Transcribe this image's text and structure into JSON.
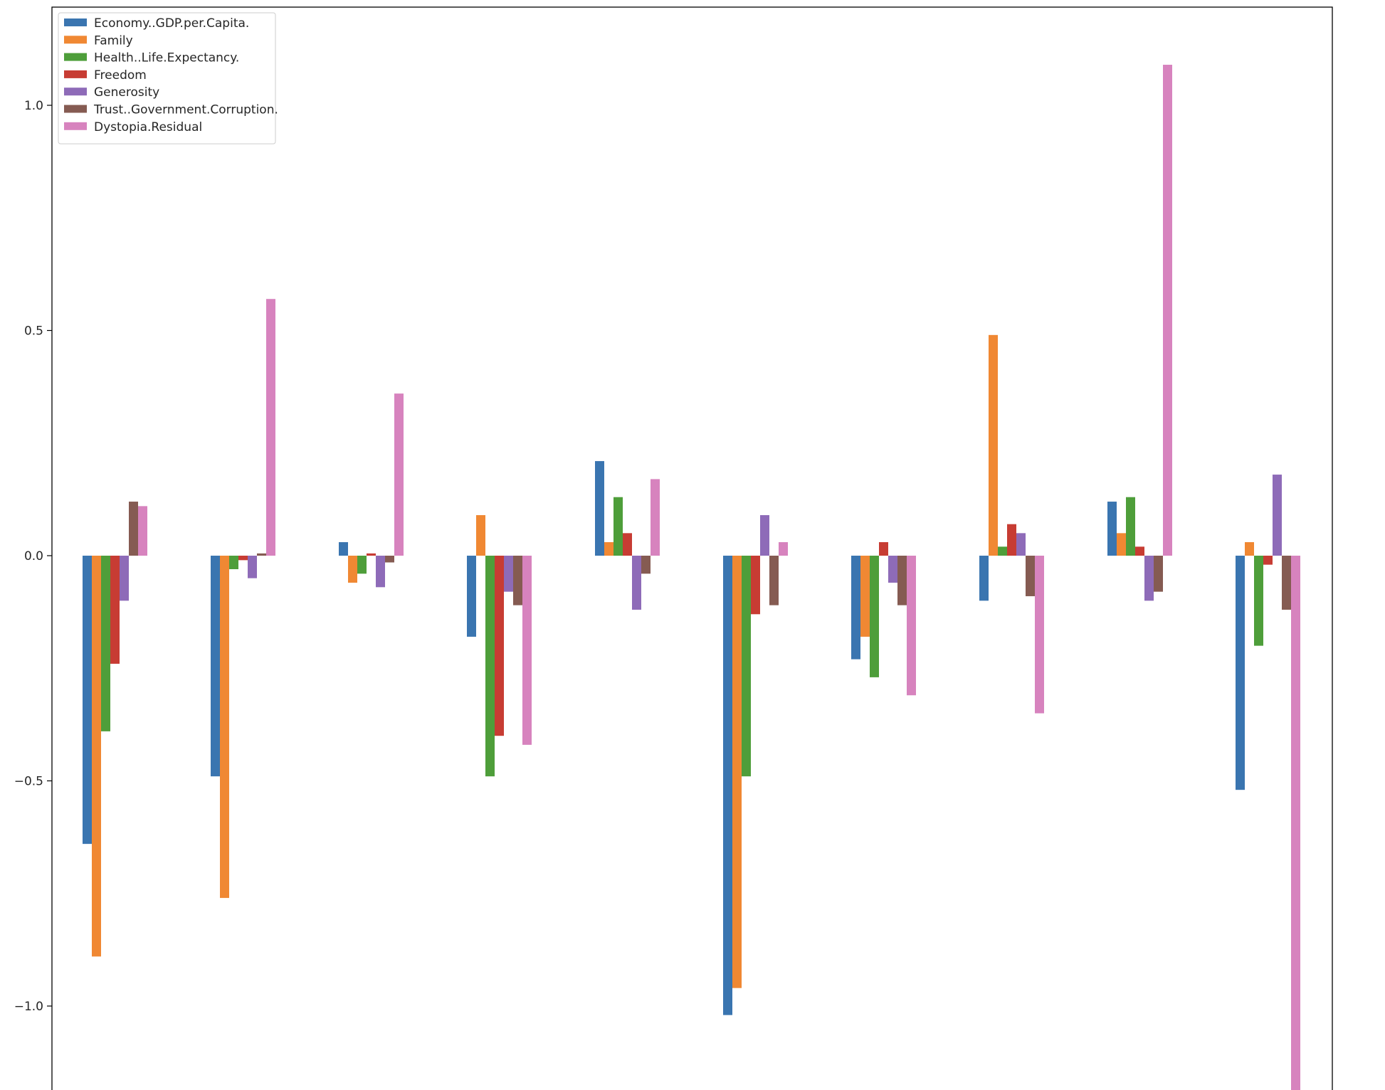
{
  "chart_data": {
    "type": "bar",
    "categories": [
      "",
      "",
      "",
      "",
      "",
      "",
      "",
      "",
      "",
      ""
    ],
    "ylim": [
      -1.2,
      1.2
    ],
    "yticks": [
      -1.0,
      -0.5,
      0.0,
      0.5,
      1.0
    ],
    "ytick_labels": [
      "−1.0",
      "−0.5",
      "0.0",
      "0.5",
      "1.0"
    ],
    "grid": false,
    "legend_position": "top-left",
    "series": [
      {
        "name": "Economy..GDP.per.Capita.",
        "color": "#3a75b0",
        "values": [
          -0.64,
          -0.49,
          0.03,
          -0.18,
          0.21,
          -1.02,
          -0.23,
          -0.1,
          0.12,
          -0.52
        ]
      },
      {
        "name": "Family",
        "color": "#f08833",
        "values": [
          -0.89,
          -0.76,
          -0.06,
          0.09,
          0.03,
          -0.96,
          -0.18,
          0.49,
          0.05,
          0.03
        ]
      },
      {
        "name": "Health..Life.Expectancy.",
        "color": "#4e9e3a",
        "values": [
          -0.39,
          -0.03,
          -0.04,
          -0.49,
          0.13,
          -0.49,
          -0.27,
          0.02,
          0.13,
          -0.2
        ]
      },
      {
        "name": "Freedom",
        "color": "#c73c33",
        "values": [
          -0.24,
          -0.01,
          0.005,
          -0.4,
          0.05,
          -0.13,
          0.03,
          0.07,
          0.02,
          -0.02
        ]
      },
      {
        "name": "Generosity",
        "color": "#8e6bb8",
        "values": [
          -0.1,
          -0.05,
          -0.07,
          -0.08,
          -0.12,
          0.09,
          -0.06,
          0.05,
          -0.1,
          0.18
        ]
      },
      {
        "name": "Trust..Government.Corruption.",
        "color": "#855b52",
        "values": [
          0.12,
          0.005,
          -0.015,
          -0.11,
          -0.04,
          -0.11,
          -0.11,
          -0.09,
          -0.08,
          -0.12
        ]
      },
      {
        "name": "Dystopia.Residual",
        "color": "#d783be",
        "values": [
          0.11,
          0.57,
          0.36,
          -0.42,
          0.17,
          0.03,
          -0.31,
          -0.35,
          1.09,
          -1.21
        ]
      }
    ]
  }
}
